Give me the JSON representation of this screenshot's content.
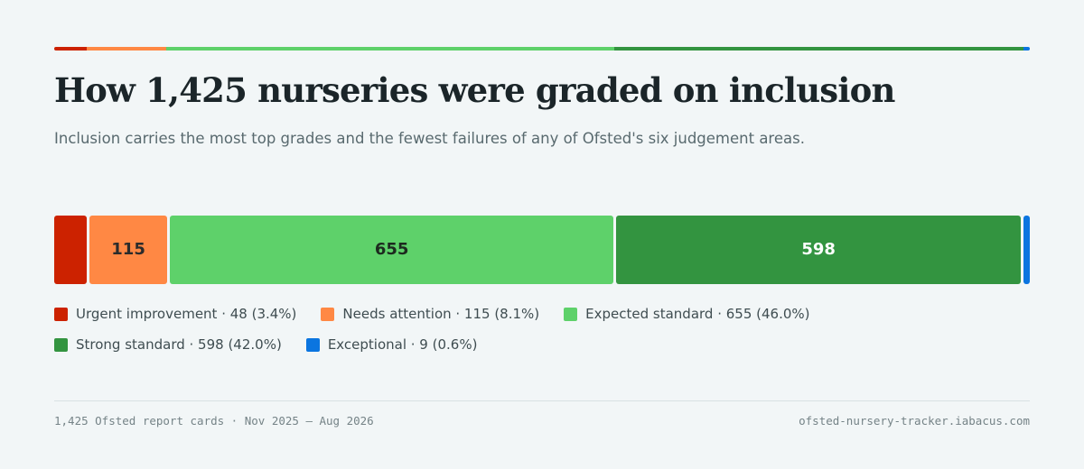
{
  "chart_data": {
    "type": "bar",
    "orientation": "horizontal-stacked",
    "title": "How 1,425 nurseries were graded on inclusion",
    "subtitle": "Inclusion carries the most top grades and the fewest failures of any of Ofsted's six judgement areas.",
    "total": 1425,
    "categories": [
      "Urgent improvement",
      "Needs attention",
      "Expected standard",
      "Strong standard",
      "Exceptional"
    ],
    "values": [
      48,
      115,
      655,
      598,
      9
    ],
    "segment_labels": [
      "",
      "115",
      "655",
      "598",
      ""
    ],
    "colors": [
      "#cc2200",
      "#ff8844",
      "#5ed16a",
      "#339440",
      "#0b75e0"
    ],
    "label_colors": [
      "#ffffff",
      "#2b2b2b",
      "#1d2a1f",
      "#ffffff",
      "#ffffff"
    ],
    "legend": {
      "placement": "bottom-left",
      "items": [
        {
          "text": "Urgent improvement · 48 (3.4%)",
          "color": "#cc2200"
        },
        {
          "text": "Needs attention · 115 (8.1%)",
          "color": "#ff8844"
        },
        {
          "text": "Expected standard · 655 (46.0%)",
          "color": "#5ed16a"
        },
        {
          "text": "Strong standard · 598 (42.0%)",
          "color": "#339440"
        },
        {
          "text": "Exceptional · 9 (0.6%)",
          "color": "#0b75e0"
        }
      ]
    },
    "grid": false
  },
  "footer": {
    "left": "1,425 Ofsted report cards · Nov 2025 – Aug 2026",
    "right": "ofsted-nursery-tracker.iabacus.com"
  }
}
